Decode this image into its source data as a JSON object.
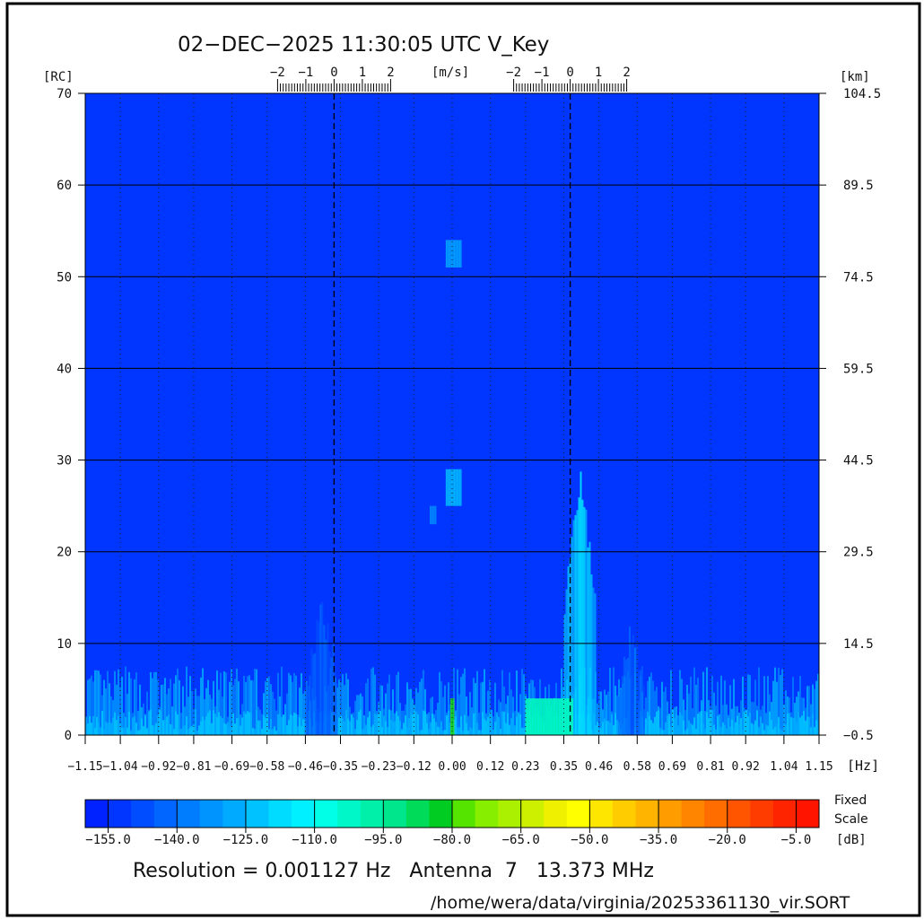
{
  "header": {
    "title": "02−DEC−2025 11:30:05 UTC   V_Key"
  },
  "chart_data": {
    "type": "heatmap",
    "xlabel": "[Hz]",
    "ylabel_left": "[RC]",
    "ylabel_right": "[km]",
    "velocity_label": "[m/s]",
    "xlim": [
      -1.15,
      1.15
    ],
    "ylim": [
      0,
      70
    ],
    "x_ticks": [
      "−1.15",
      "−1.04",
      "−0.92",
      "−0.81",
      "−0.69",
      "−0.58",
      "−0.46",
      "−0.35",
      "−0.23",
      "−0.12",
      "0.00",
      "0.12",
      "0.23",
      "0.35",
      "0.46",
      "0.58",
      "0.69",
      "0.81",
      "0.92",
      "1.04",
      "1.15"
    ],
    "y_ticks_left": [
      "0",
      "10",
      "20",
      "30",
      "40",
      "50",
      "60",
      "70"
    ],
    "y_ticks_right": [
      "−0.5",
      "14.5",
      "29.5",
      "44.5",
      "59.5",
      "74.5",
      "89.5",
      "104.5"
    ],
    "velocity_ticks": [
      "−2",
      "−1",
      "0",
      "1",
      "2"
    ],
    "bragg_lines_hz": [
      -0.37,
      0.37
    ],
    "background_level_db": -155,
    "features": [
      {
        "name": "noise floor band",
        "x_range": [
          -1.15,
          1.15
        ],
        "rc_range": [
          0,
          7
        ],
        "db": -130
      },
      {
        "name": "positive bragg plume",
        "x_range": [
          0.35,
          0.45
        ],
        "rc_range": [
          0,
          30
        ],
        "db": -120
      },
      {
        "name": "positive bragg peak",
        "x_range": [
          0.23,
          0.38
        ],
        "rc_range": [
          0,
          4
        ],
        "db": -105
      },
      {
        "name": "second-order hump",
        "x_range": [
          0.52,
          0.6
        ],
        "rc_range": [
          0,
          13
        ],
        "db": -140
      },
      {
        "name": "negative bragg faint",
        "x_range": [
          -0.46,
          -0.36
        ],
        "rc_range": [
          0,
          15
        ],
        "db": -145
      },
      {
        "name": "zero-doppler echo 1",
        "x_range": [
          -0.02,
          0.03
        ],
        "rc_range": [
          51,
          54
        ],
        "db": -135
      },
      {
        "name": "zero-doppler echo 2",
        "x_range": [
          -0.02,
          0.03
        ],
        "rc_range": [
          25,
          29
        ],
        "db": -128
      },
      {
        "name": "zero-doppler echo 3",
        "x_range": [
          -0.07,
          -0.05
        ],
        "rc_range": [
          23,
          25
        ],
        "db": -140
      },
      {
        "name": "zero-doppler line",
        "x_range": [
          -0.005,
          0.005
        ],
        "rc_range": [
          0,
          4
        ],
        "db": -85
      }
    ]
  },
  "colorbar": {
    "ticks": [
      "−155.0",
      "−140.0",
      "−125.0",
      "−110.0",
      "−95.0",
      "−80.0",
      "−65.0",
      "−50.0",
      "−35.0",
      "−20.0",
      "−5.0"
    ],
    "range_db": [
      -160,
      0
    ],
    "label_top": "Fixed",
    "label_mid": "Scale",
    "label_unit": "[dB]",
    "colors": [
      "#0022ff",
      "#0036ff",
      "#004dff",
      "#0066ff",
      "#007dff",
      "#0094ff",
      "#00abff",
      "#00c2ff",
      "#00dcff",
      "#00f0ff",
      "#00ffe6",
      "#00f8c8",
      "#00f0aa",
      "#00e68c",
      "#00dc5a",
      "#00cc22",
      "#55e400",
      "#88ee00",
      "#aaf000",
      "#ccf000",
      "#eef000",
      "#ffff00",
      "#ffe600",
      "#ffcc00",
      "#ffb400",
      "#ff9c00",
      "#ff8400",
      "#ff6c00",
      "#ff5400",
      "#ff3c00",
      "#ff2400",
      "#ff1400"
    ]
  },
  "footer": {
    "info": "Resolution = 0.001127 Hz   Antenna  7   13.373 MHz",
    "path": "/home/wera/data/virginia/20253361130_vir.SORT"
  }
}
